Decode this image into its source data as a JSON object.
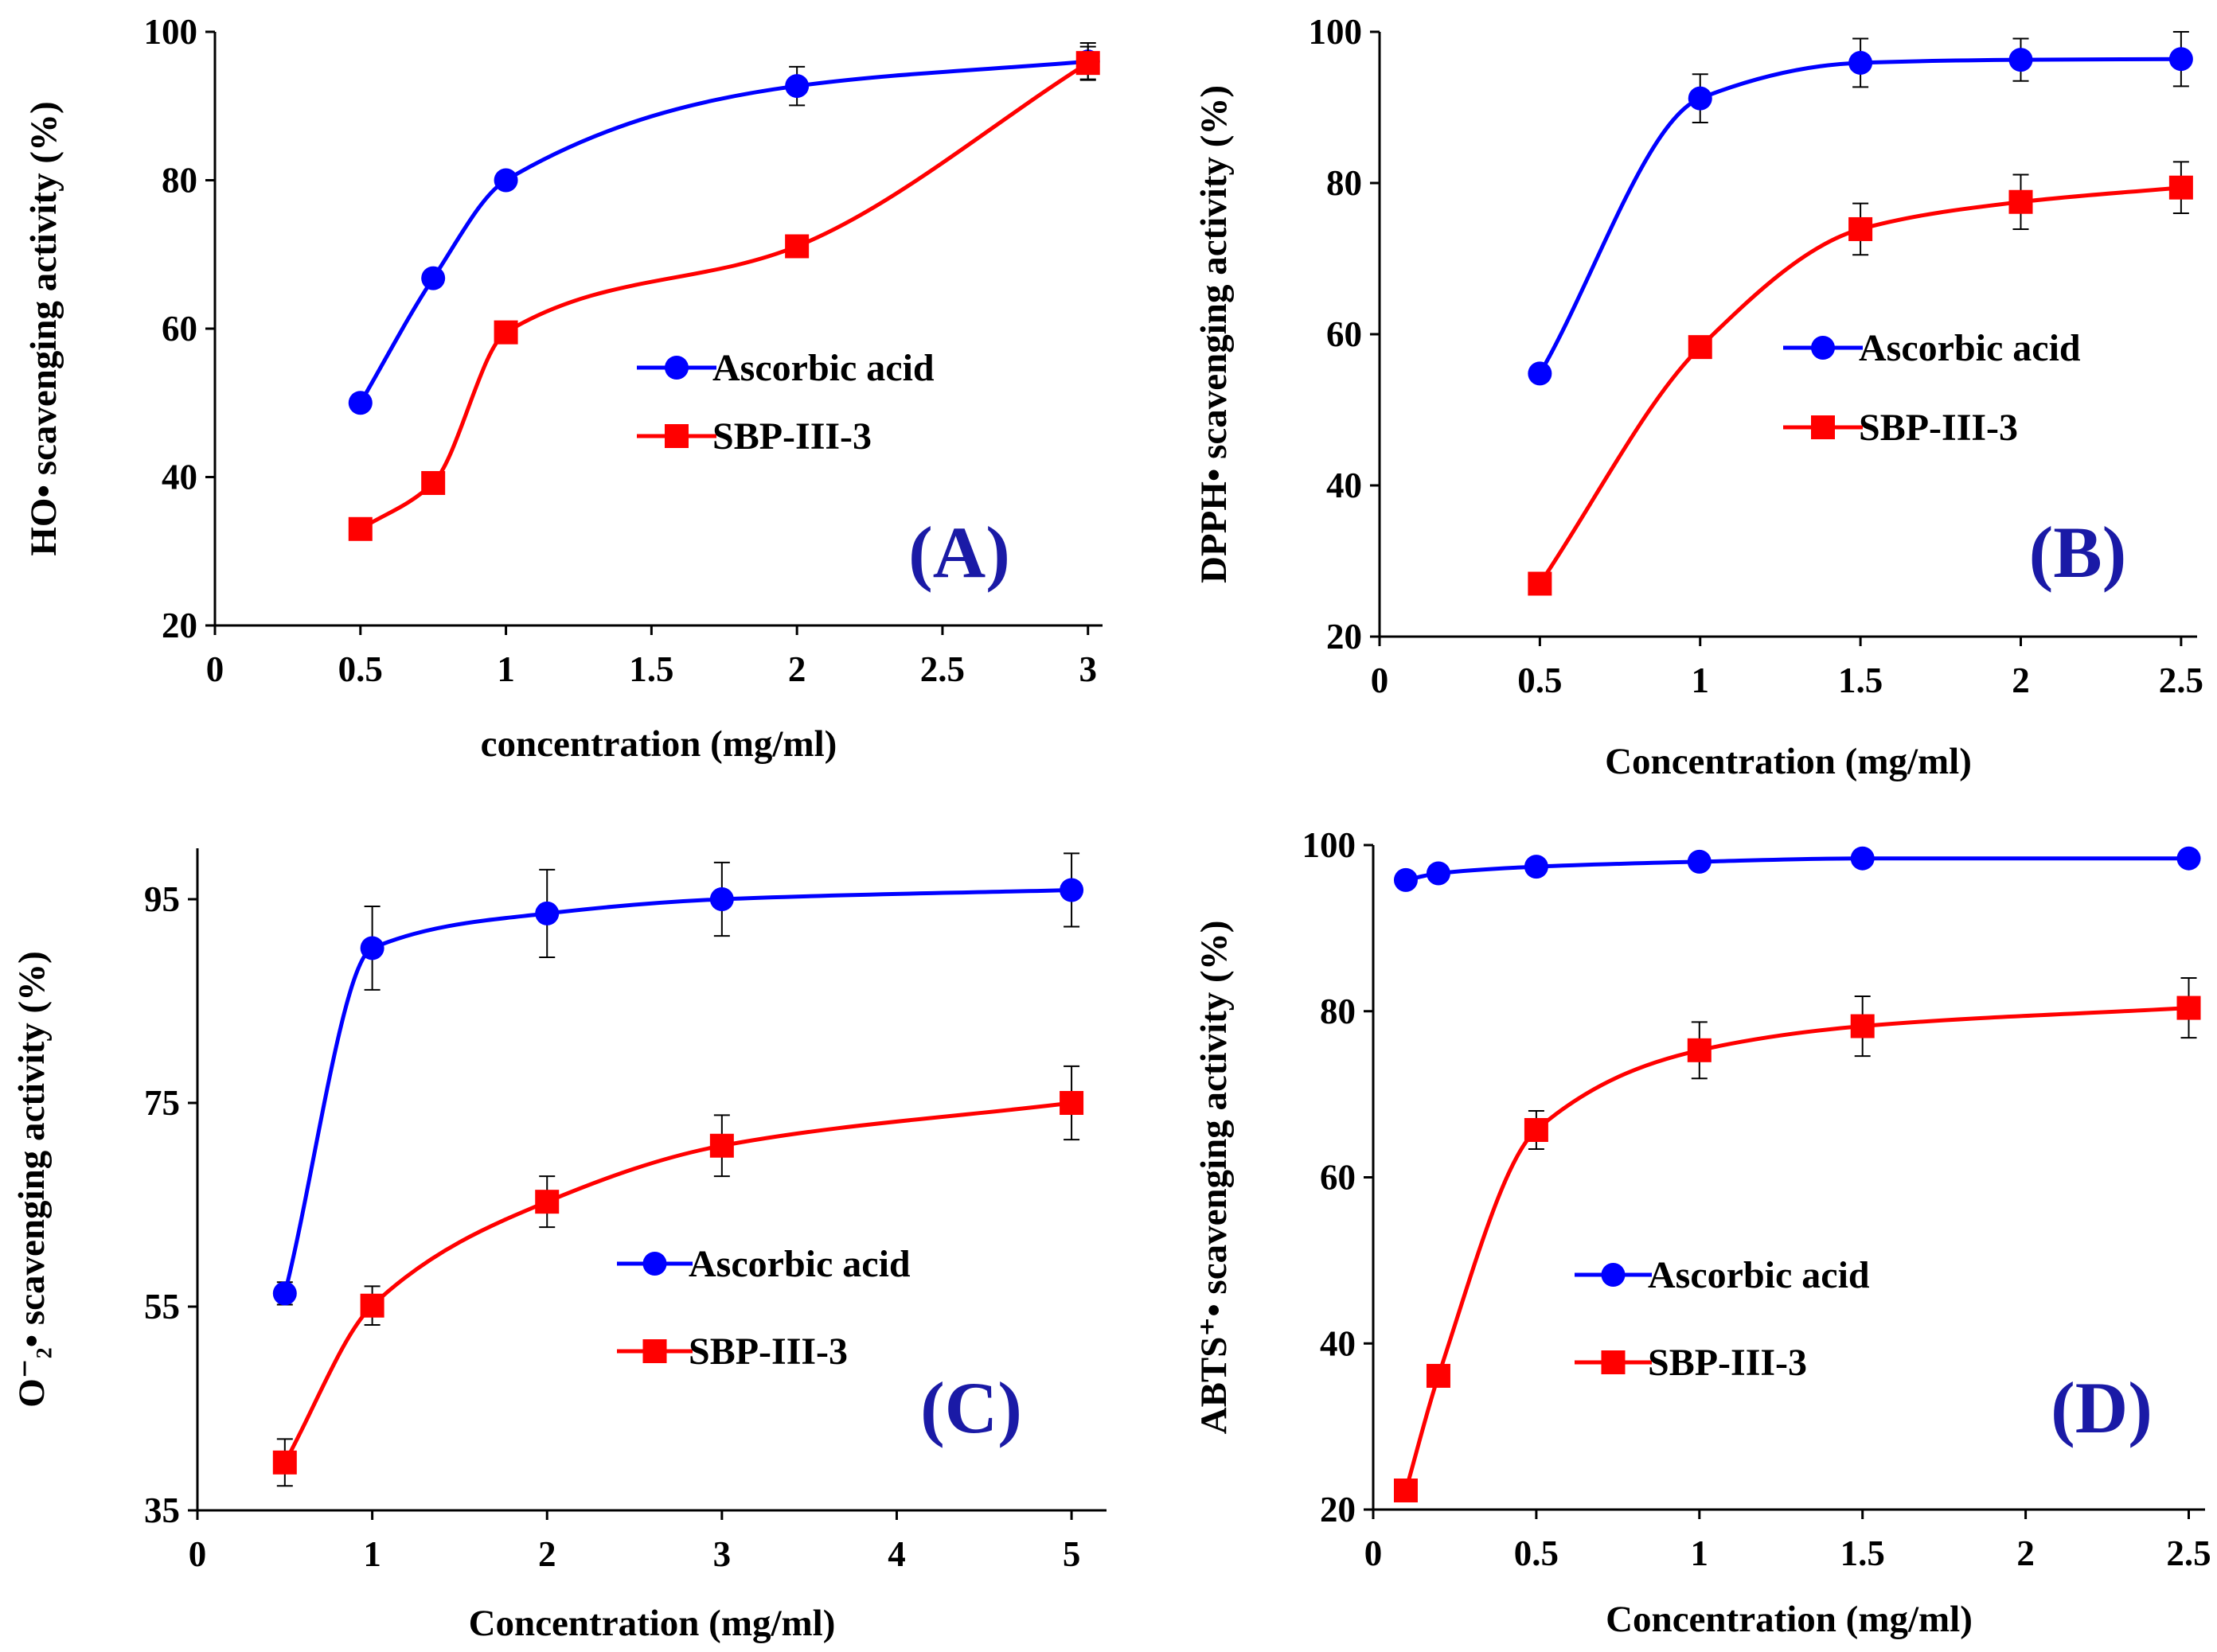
{
  "chart_data": [
    {
      "type": "line",
      "panel_label": "(A)",
      "xlabel": "concentration (mg/ml)",
      "ylabel": "HO• scavenging activity (%)",
      "xlim": [
        0,
        3.05
      ],
      "ylim": [
        20,
        100
      ],
      "xticks": [
        0,
        0.5,
        1,
        1.5,
        2,
        2.5,
        3
      ],
      "xtick_labels": [
        "0",
        "0.5",
        "1",
        "1.5",
        "2",
        "2.5",
        "3"
      ],
      "yticks": [
        20,
        40,
        60,
        80,
        100
      ],
      "ytick_labels": [
        "20",
        "40",
        "60",
        "80",
        "100"
      ],
      "series": [
        {
          "name": "Ascorbic acid",
          "color": "#0000ff",
          "marker": "circle",
          "x": [
            0.5,
            0.75,
            1,
            2,
            3
          ],
          "y": [
            50,
            66.8,
            80,
            92.7,
            96
          ],
          "err": [
            0,
            0,
            0,
            2.6,
            2.5
          ]
        },
        {
          "name": "SBP-III-3",
          "color": "#ff0000",
          "marker": "square",
          "x": [
            0.5,
            0.75,
            1,
            2,
            3
          ],
          "y": [
            33,
            39.2,
            59.5,
            71.1,
            95.8
          ],
          "err": [
            0,
            0,
            0,
            0,
            2.2
          ]
        }
      ],
      "legend": [
        "Ascorbic acid",
        "SBP-III-3"
      ]
    },
    {
      "type": "line",
      "panel_label": "(B)",
      "xlabel": "Concentration (mg/ml)",
      "ylabel": "DPPH• scavenging activity (%)",
      "xlim": [
        0,
        2.55
      ],
      "ylim": [
        20,
        100
      ],
      "xticks": [
        0,
        0.5,
        1,
        1.5,
        2,
        2.5
      ],
      "xtick_labels": [
        "0",
        "0.5",
        "1",
        "1.5",
        "2",
        "2.5"
      ],
      "yticks": [
        20,
        40,
        60,
        80,
        100
      ],
      "ytick_labels": [
        "20",
        "40",
        "60",
        "80",
        "100"
      ],
      "series": [
        {
          "name": "Ascorbic acid",
          "color": "#0000ff",
          "marker": "circle",
          "x": [
            0.5,
            1,
            1.5,
            2,
            2.5
          ],
          "y": [
            54.8,
            91.2,
            95.9,
            96.3,
            96.4
          ],
          "err": [
            0,
            3.2,
            3.2,
            2.8,
            3.6
          ]
        },
        {
          "name": "SBP-III-3",
          "color": "#ff0000",
          "marker": "square",
          "x": [
            0.5,
            1,
            1.5,
            2,
            2.5
          ],
          "y": [
            27,
            58.3,
            73.9,
            77.5,
            79.4
          ],
          "err": [
            0,
            0,
            3.4,
            3.6,
            3.4
          ]
        }
      ],
      "legend": [
        "Ascorbic acid",
        "SBP-III-3"
      ]
    },
    {
      "type": "line",
      "panel_label": "(C)",
      "xlabel": "Concentration (mg/ml)",
      "ylabel": "O⁻₂• scavenging activity (%)",
      "xlim": [
        0,
        5.2
      ],
      "ylim": [
        35,
        100
      ],
      "xticks": [
        0,
        1,
        2,
        3,
        4,
        5
      ],
      "xtick_labels": [
        "0",
        "1",
        "2",
        "3",
        "4",
        "5"
      ],
      "yticks": [
        35,
        55,
        75,
        95
      ],
      "ytick_labels": [
        "35",
        "55",
        "75",
        "95"
      ],
      "series": [
        {
          "name": "Ascorbic acid",
          "color": "#0000ff",
          "marker": "circle",
          "x": [
            0.5,
            1,
            2,
            3,
            5
          ],
          "y": [
            56.3,
            90.2,
            93.6,
            95,
            95.9
          ],
          "err": [
            1.1,
            4.1,
            4.3,
            3.6,
            3.6
          ]
        },
        {
          "name": "SBP-III-3",
          "color": "#ff0000",
          "marker": "square",
          "x": [
            0.5,
            1,
            2,
            3,
            5
          ],
          "y": [
            39.7,
            55.1,
            65.3,
            70.8,
            75
          ],
          "err": [
            2.3,
            1.9,
            2.5,
            3.0,
            3.6
          ]
        }
      ],
      "legend": [
        "Ascorbic acid",
        "SBP-III-3"
      ]
    },
    {
      "type": "line",
      "panel_label": "(D)",
      "xlabel": "Concentration (mg/ml)",
      "ylabel": "ABTS⁺• scavenging activity (%)",
      "xlim": [
        0,
        2.55
      ],
      "ylim": [
        20,
        100
      ],
      "xticks": [
        0,
        0.5,
        1,
        1.5,
        2,
        2.5
      ],
      "xtick_labels": [
        "0",
        "0.5",
        "1",
        "1.5",
        "2",
        "2.5"
      ],
      "yticks": [
        20,
        40,
        60,
        80,
        100
      ],
      "ytick_labels": [
        "20",
        "40",
        "60",
        "80",
        "100"
      ],
      "series": [
        {
          "name": "Ascorbic acid",
          "color": "#0000ff",
          "marker": "circle",
          "x": [
            0.1,
            0.2,
            0.5,
            1,
            1.5,
            2.5
          ],
          "y": [
            95.8,
            96.6,
            97.4,
            98,
            98.4,
            98.4
          ],
          "err": [
            0,
            0,
            0,
            0,
            0,
            0
          ]
        },
        {
          "name": "SBP-III-3",
          "color": "#ff0000",
          "marker": "square",
          "x": [
            0.1,
            0.2,
            0.5,
            1,
            1.5,
            2.5
          ],
          "y": [
            22.3,
            36.1,
            65.7,
            75.3,
            78.2,
            80.4
          ],
          "err": [
            0,
            0,
            2.3,
            3.4,
            3.6,
            3.6
          ]
        }
      ],
      "legend": [
        "Ascorbic acid",
        "SBP-III-3"
      ]
    }
  ]
}
